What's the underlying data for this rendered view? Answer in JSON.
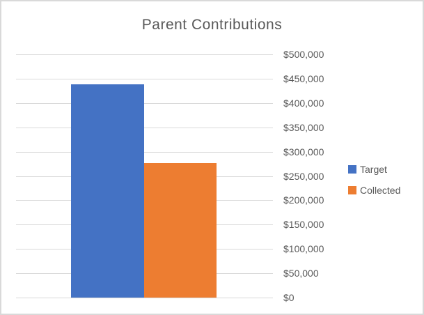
{
  "chart_data": {
    "type": "bar",
    "title": "Parent Contributions",
    "categories": [
      ""
    ],
    "series": [
      {
        "name": "Target",
        "color": "#4472C4",
        "values": [
          438000
        ]
      },
      {
        "name": "Collected",
        "color": "#ED7D31",
        "values": [
          277000
        ]
      }
    ],
    "xlabel": "",
    "ylabel": "",
    "ylim": [
      0,
      500000
    ],
    "ytick_step": 50000,
    "ytick_labels": [
      "$0",
      "$50,000",
      "$100,000",
      "$150,000",
      "$200,000",
      "$250,000",
      "$300,000",
      "$350,000",
      "$400,000",
      "$450,000",
      "$500,000"
    ],
    "grid": true,
    "y_axis_side": "right",
    "legend_position": "right",
    "text_color": "#595959",
    "gridline_color": "#D9D9D9",
    "border_color": "#D9D9D9",
    "background": "#FFFFFF"
  }
}
